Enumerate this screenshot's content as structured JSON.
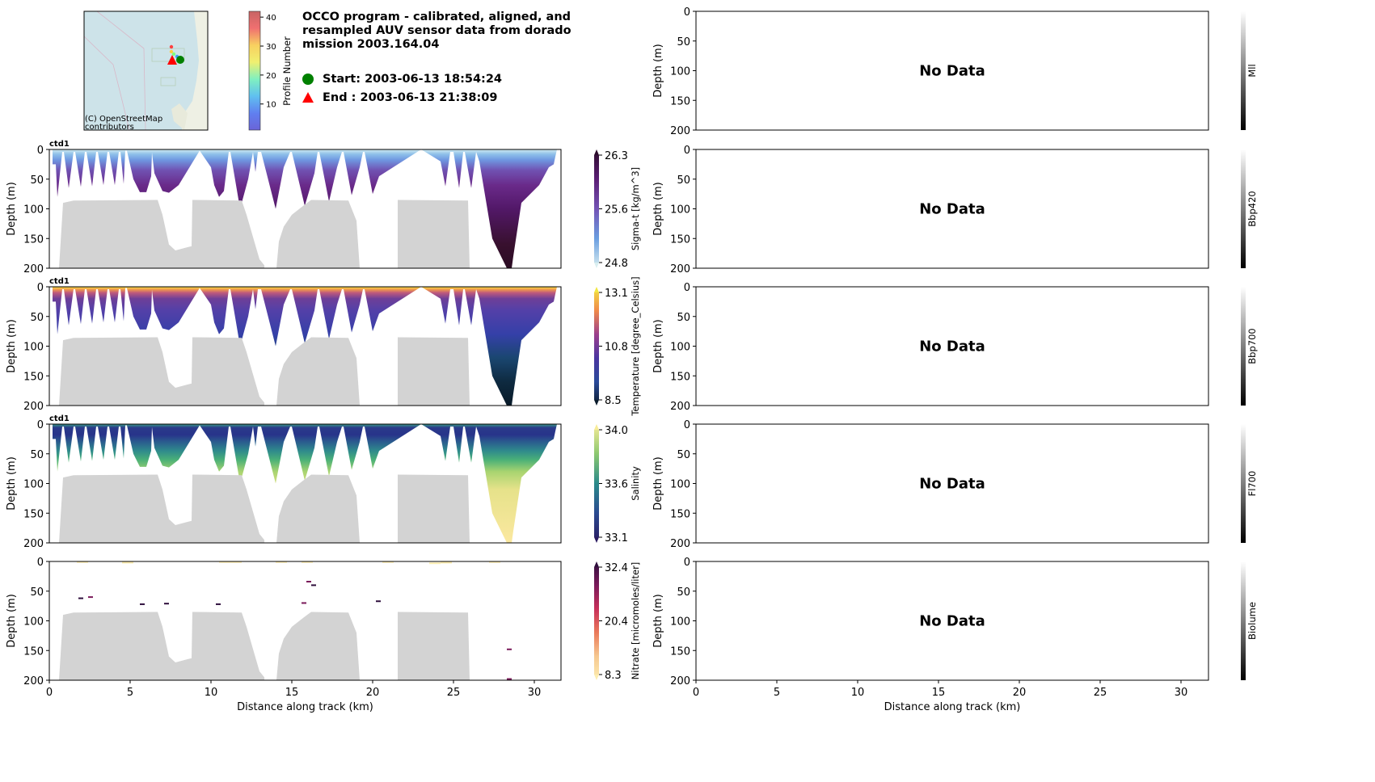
{
  "header": {
    "title_lines": [
      "OCCO program - calibrated, aligned, and",
      "resampled AUV sensor data from dorado",
      "mission 2003.164.04"
    ],
    "start_label": "Start: 2003-06-13 18:54:24",
    "end_label": "End  : 2003-06-13 21:38:09",
    "start_color": "#008000",
    "end_color": "#ff0000",
    "map_attribution_lines": [
      "(C) OpenStreetMap",
      "contributors"
    ],
    "profile_cbar": {
      "label": "Profile Number",
      "ticks": [
        "10",
        "20",
        "30",
        "40"
      ],
      "tick_values": [
        10,
        20,
        30,
        40
      ],
      "range": [
        1,
        42
      ]
    }
  },
  "axes": {
    "ylabel": "Depth (m)",
    "xlabel": "Distance along track (km)",
    "xticks": [
      "0",
      "5",
      "10",
      "15",
      "20",
      "25",
      "30"
    ],
    "xtick_values": [
      0,
      5,
      10,
      15,
      20,
      25,
      30
    ],
    "yticks": [
      "0",
      "50",
      "100",
      "150",
      "200"
    ],
    "ytick_values": [
      0,
      50,
      100,
      150,
      200
    ],
    "xlim": [
      0,
      31.65
    ],
    "ylim": [
      200,
      0
    ]
  },
  "left_panels": [
    {
      "tag": "ctd1",
      "cbar_label": "Sigma-t [kg/m^3]",
      "cbar_ticks": [
        "26.3",
        "25.6",
        "24.8"
      ],
      "cbar_colors": [
        "#2b0b2a",
        "#5b1e74",
        "#7353b5",
        "#6a9ee0",
        "#d9eef0"
      ],
      "depth_colors": [
        [
          0,
          "#d0eaf0"
        ],
        [
          8,
          "#8ec0ea"
        ],
        [
          18,
          "#6f96e0"
        ],
        [
          35,
          "#7052b2"
        ],
        [
          60,
          "#6a2a8a"
        ],
        [
          100,
          "#521868"
        ],
        [
          160,
          "#38102e"
        ],
        [
          200,
          "#2a0b22"
        ]
      ]
    },
    {
      "tag": "ctd1",
      "cbar_label": "Temperature [degree_Celsius]",
      "cbar_ticks": [
        "13.1",
        "10.8",
        "8.5"
      ],
      "cbar_colors": [
        "#f2e640",
        "#f08a4a",
        "#9c3f8c",
        "#4a35a0",
        "#2a4a9a",
        "#0b1c2c"
      ],
      "depth_colors": [
        [
          0,
          "#f5e24a"
        ],
        [
          4,
          "#f3a048"
        ],
        [
          10,
          "#c05a7c"
        ],
        [
          20,
          "#6e3f98"
        ],
        [
          40,
          "#5340a8"
        ],
        [
          80,
          "#3540a8"
        ],
        [
          120,
          "#1a4670"
        ],
        [
          160,
          "#0e2a40"
        ],
        [
          200,
          "#081a28"
        ]
      ]
    },
    {
      "tag": "ctd1",
      "cbar_label": "Salinity",
      "cbar_ticks": [
        "34.0",
        "33.6",
        "33.1"
      ],
      "cbar_colors": [
        "#f8ec98",
        "#8cc870",
        "#2a8a8a",
        "#2a4a90",
        "#2a1a60"
      ],
      "depth_colors": [
        [
          0,
          "#3a9a88"
        ],
        [
          6,
          "#2a3a8a"
        ],
        [
          18,
          "#28348a"
        ],
        [
          30,
          "#2a5c8e"
        ],
        [
          45,
          "#2f8a8c"
        ],
        [
          60,
          "#4ab078"
        ],
        [
          80,
          "#a8d470"
        ],
        [
          110,
          "#e6e28a"
        ],
        [
          200,
          "#fbe8a0"
        ]
      ]
    },
    {
      "tag": "",
      "cbar_label": "Nitrate [micromoles/liter]",
      "cbar_ticks": [
        "32.4",
        "20.4",
        "8.3"
      ],
      "cbar_colors": [
        "#2f0f3d",
        "#7a1a5a",
        "#c8305a",
        "#ea7a5a",
        "#f6c890",
        "#fdedb0"
      ],
      "depth_colors": []
    }
  ],
  "right_panels": [
    {
      "no_data": "No Data",
      "cbar_label": "Mll"
    },
    {
      "no_data": "No Data",
      "cbar_label": "Bbp420"
    },
    {
      "no_data": "No Data",
      "cbar_label": "Bbp700"
    },
    {
      "no_data": "No Data",
      "cbar_label": "Fl700"
    },
    {
      "no_data": "No Data",
      "cbar_label": "Biolume"
    }
  ],
  "chart_data": {
    "type": "area",
    "description_units": {
      "x": "km along track",
      "y": "depth m"
    },
    "data_envelope": [
      [
        0.2,
        0
      ],
      [
        0.2,
        25
      ],
      [
        0.4,
        25
      ],
      [
        0.5,
        80
      ],
      [
        0.8,
        4
      ],
      [
        0.9,
        4
      ],
      [
        1.2,
        65
      ],
      [
        1.5,
        4
      ],
      [
        1.6,
        4
      ],
      [
        1.95,
        63
      ],
      [
        2.2,
        4
      ],
      [
        2.3,
        4
      ],
      [
        2.65,
        62
      ],
      [
        2.9,
        4
      ],
      [
        3.0,
        4
      ],
      [
        3.35,
        60
      ],
      [
        3.6,
        4
      ],
      [
        3.7,
        4
      ],
      [
        4.05,
        60
      ],
      [
        4.3,
        4
      ],
      [
        4.4,
        4
      ],
      [
        4.6,
        58
      ],
      [
        4.7,
        2
      ],
      [
        4.8,
        2
      ],
      [
        5.2,
        50
      ],
      [
        5.6,
        72
      ],
      [
        6.0,
        72
      ],
      [
        6.3,
        45
      ],
      [
        6.35,
        5
      ],
      [
        6.5,
        40
      ],
      [
        7.0,
        70
      ],
      [
        7.4,
        73
      ],
      [
        8.0,
        60
      ],
      [
        9.3,
        2
      ],
      [
        10.0,
        30
      ],
      [
        10.2,
        60
      ],
      [
        10.5,
        80
      ],
      [
        10.8,
        70
      ],
      [
        11.1,
        4
      ],
      [
        11.2,
        4
      ],
      [
        11.8,
        100
      ],
      [
        12.3,
        50
      ],
      [
        12.6,
        4
      ],
      [
        12.75,
        38
      ],
      [
        12.9,
        4
      ],
      [
        13.1,
        4
      ],
      [
        14.0,
        100
      ],
      [
        14.5,
        30
      ],
      [
        14.9,
        4
      ],
      [
        15.0,
        4
      ],
      [
        15.8,
        95
      ],
      [
        16.4,
        40
      ],
      [
        16.6,
        4
      ],
      [
        16.7,
        4
      ],
      [
        17.3,
        88
      ],
      [
        17.8,
        30
      ],
      [
        18.1,
        4
      ],
      [
        18.2,
        4
      ],
      [
        18.7,
        77
      ],
      [
        19.2,
        30
      ],
      [
        19.4,
        4
      ],
      [
        19.5,
        4
      ],
      [
        20.0,
        75
      ],
      [
        20.4,
        45
      ],
      [
        23.0,
        0
      ],
      [
        24.2,
        20
      ],
      [
        24.5,
        62
      ],
      [
        24.8,
        4
      ],
      [
        25.0,
        4
      ],
      [
        25.35,
        65
      ],
      [
        25.6,
        4
      ],
      [
        25.7,
        4
      ],
      [
        26.1,
        65
      ],
      [
        26.4,
        4
      ],
      [
        26.6,
        20
      ],
      [
        27.4,
        150
      ],
      [
        28.3,
        200
      ],
      [
        28.6,
        200
      ],
      [
        28.7,
        180
      ],
      [
        29.2,
        90
      ],
      [
        30.3,
        60
      ],
      [
        30.9,
        30
      ],
      [
        31.2,
        25
      ],
      [
        31.3,
        12
      ],
      [
        31.4,
        0
      ]
    ],
    "bathymetry": [
      [
        [
          0.6,
          200
        ],
        [
          0.85,
          90
        ],
        [
          1.5,
          86
        ],
        [
          6.7,
          85
        ],
        [
          7.0,
          110
        ],
        [
          7.4,
          160
        ],
        [
          7.8,
          170
        ],
        [
          8.5,
          165
        ],
        [
          8.8,
          163
        ],
        [
          8.85,
          85
        ],
        [
          11.9,
          86
        ],
        [
          12.2,
          110
        ],
        [
          13.0,
          185
        ],
        [
          13.3,
          195
        ],
        [
          13.3,
          200
        ]
      ],
      [
        [
          14.05,
          200
        ],
        [
          14.2,
          155
        ],
        [
          14.5,
          130
        ],
        [
          15.0,
          110
        ],
        [
          15.7,
          95
        ],
        [
          16.2,
          85
        ],
        [
          18.5,
          86
        ],
        [
          19.0,
          120
        ],
        [
          19.2,
          200
        ]
      ],
      [
        [
          21.55,
          200
        ],
        [
          21.55,
          85
        ],
        [
          25.9,
          86
        ],
        [
          26.0,
          200
        ]
      ]
    ],
    "nitrate_points": [
      [
        1.7,
        1,
        9
      ],
      [
        4.5,
        2,
        10
      ],
      [
        10.5,
        1,
        10
      ],
      [
        11.2,
        1,
        9
      ],
      [
        14.0,
        1,
        10
      ],
      [
        15.6,
        1,
        9
      ],
      [
        20.6,
        1,
        10
      ],
      [
        23.5,
        3,
        10
      ],
      [
        24.2,
        2,
        9
      ],
      [
        27.2,
        1,
        10
      ],
      [
        15.9,
        34,
        29
      ],
      [
        16.2,
        40,
        30
      ],
      [
        1.8,
        62,
        30
      ],
      [
        2.4,
        60,
        28
      ],
      [
        5.6,
        72,
        30
      ],
      [
        7.1,
        71,
        31
      ],
      [
        10.3,
        72,
        30
      ],
      [
        15.6,
        70,
        29
      ],
      [
        20.2,
        67,
        31
      ],
      [
        17.3,
        89,
        22
      ],
      [
        28.3,
        148,
        28
      ],
      [
        28.3,
        198,
        29
      ]
    ]
  }
}
